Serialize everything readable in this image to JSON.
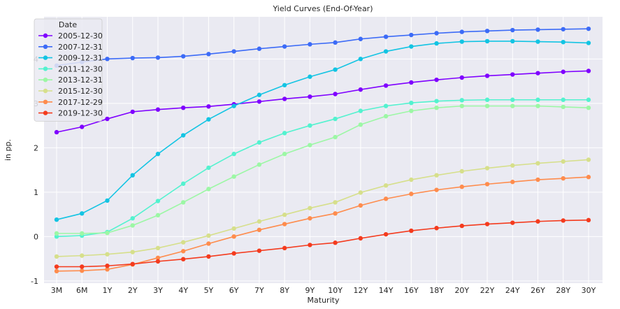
{
  "chart_data": {
    "type": "line",
    "title": "Yield Curves (End-Of-Year)",
    "xlabel": "Maturity",
    "ylabel": "in pp.",
    "ylim": [
      -1.05,
      4.95
    ],
    "yticks": [
      -1,
      0,
      1,
      2,
      3,
      4
    ],
    "grid": true,
    "legend": {
      "title": "Date",
      "placement": "top-left"
    },
    "categories": [
      "3M",
      "6M",
      "1Y",
      "2Y",
      "3Y",
      "4Y",
      "5Y",
      "6Y",
      "7Y",
      "8Y",
      "9Y",
      "10Y",
      "12Y",
      "14Y",
      "16Y",
      "18Y",
      "20Y",
      "22Y",
      "24Y",
      "26Y",
      "28Y",
      "30Y"
    ],
    "series": [
      {
        "name": "2005-12-30",
        "color": "#7f00ff",
        "values": [
          2.35,
          2.47,
          2.65,
          2.81,
          2.86,
          2.9,
          2.93,
          2.98,
          3.04,
          3.1,
          3.15,
          3.21,
          3.31,
          3.4,
          3.47,
          3.53,
          3.58,
          3.62,
          3.65,
          3.68,
          3.71,
          3.73
        ]
      },
      {
        "name": "2007-12-31",
        "color": "#3c6bf7",
        "values": [
          3.85,
          3.93,
          4.0,
          4.02,
          4.03,
          4.06,
          4.11,
          4.17,
          4.23,
          4.28,
          4.33,
          4.37,
          4.45,
          4.5,
          4.54,
          4.58,
          4.61,
          4.63,
          4.65,
          4.66,
          4.67,
          4.68
        ]
      },
      {
        "name": "2009-12-31",
        "color": "#13c4e3",
        "values": [
          0.38,
          0.52,
          0.81,
          1.38,
          1.86,
          2.28,
          2.64,
          2.94,
          3.19,
          3.41,
          3.6,
          3.76,
          4.0,
          4.17,
          4.28,
          4.35,
          4.39,
          4.4,
          4.4,
          4.39,
          4.38,
          4.36
        ]
      },
      {
        "name": "2011-12-30",
        "color": "#53f2cf",
        "values": [
          0.0,
          0.02,
          0.1,
          0.41,
          0.8,
          1.19,
          1.55,
          1.86,
          2.12,
          2.33,
          2.5,
          2.65,
          2.83,
          2.94,
          3.01,
          3.05,
          3.07,
          3.08,
          3.08,
          3.08,
          3.08,
          3.08
        ]
      },
      {
        "name": "2013-12-31",
        "color": "#9cf7a5",
        "values": [
          0.07,
          0.07,
          0.08,
          0.25,
          0.48,
          0.77,
          1.07,
          1.35,
          1.62,
          1.86,
          2.06,
          2.24,
          2.52,
          2.71,
          2.83,
          2.9,
          2.94,
          2.94,
          2.94,
          2.94,
          2.92,
          2.9
        ]
      },
      {
        "name": "2015-12-30",
        "color": "#d6df8b",
        "values": [
          -0.45,
          -0.43,
          -0.4,
          -0.35,
          -0.26,
          -0.13,
          0.02,
          0.18,
          0.34,
          0.49,
          0.64,
          0.77,
          0.99,
          1.15,
          1.28,
          1.38,
          1.47,
          1.54,
          1.6,
          1.65,
          1.69,
          1.73
        ]
      },
      {
        "name": "2017-12-29",
        "color": "#fe8c4d",
        "values": [
          -0.78,
          -0.77,
          -0.74,
          -0.63,
          -0.48,
          -0.33,
          -0.16,
          0.0,
          0.15,
          0.28,
          0.41,
          0.52,
          0.7,
          0.85,
          0.96,
          1.05,
          1.12,
          1.18,
          1.23,
          1.28,
          1.31,
          1.34
        ]
      },
      {
        "name": "2019-12-30",
        "color": "#f43b1e",
        "values": [
          -0.68,
          -0.68,
          -0.66,
          -0.62,
          -0.56,
          -0.51,
          -0.45,
          -0.38,
          -0.32,
          -0.26,
          -0.19,
          -0.14,
          -0.04,
          0.05,
          0.13,
          0.19,
          0.24,
          0.28,
          0.31,
          0.34,
          0.36,
          0.37
        ]
      }
    ]
  }
}
